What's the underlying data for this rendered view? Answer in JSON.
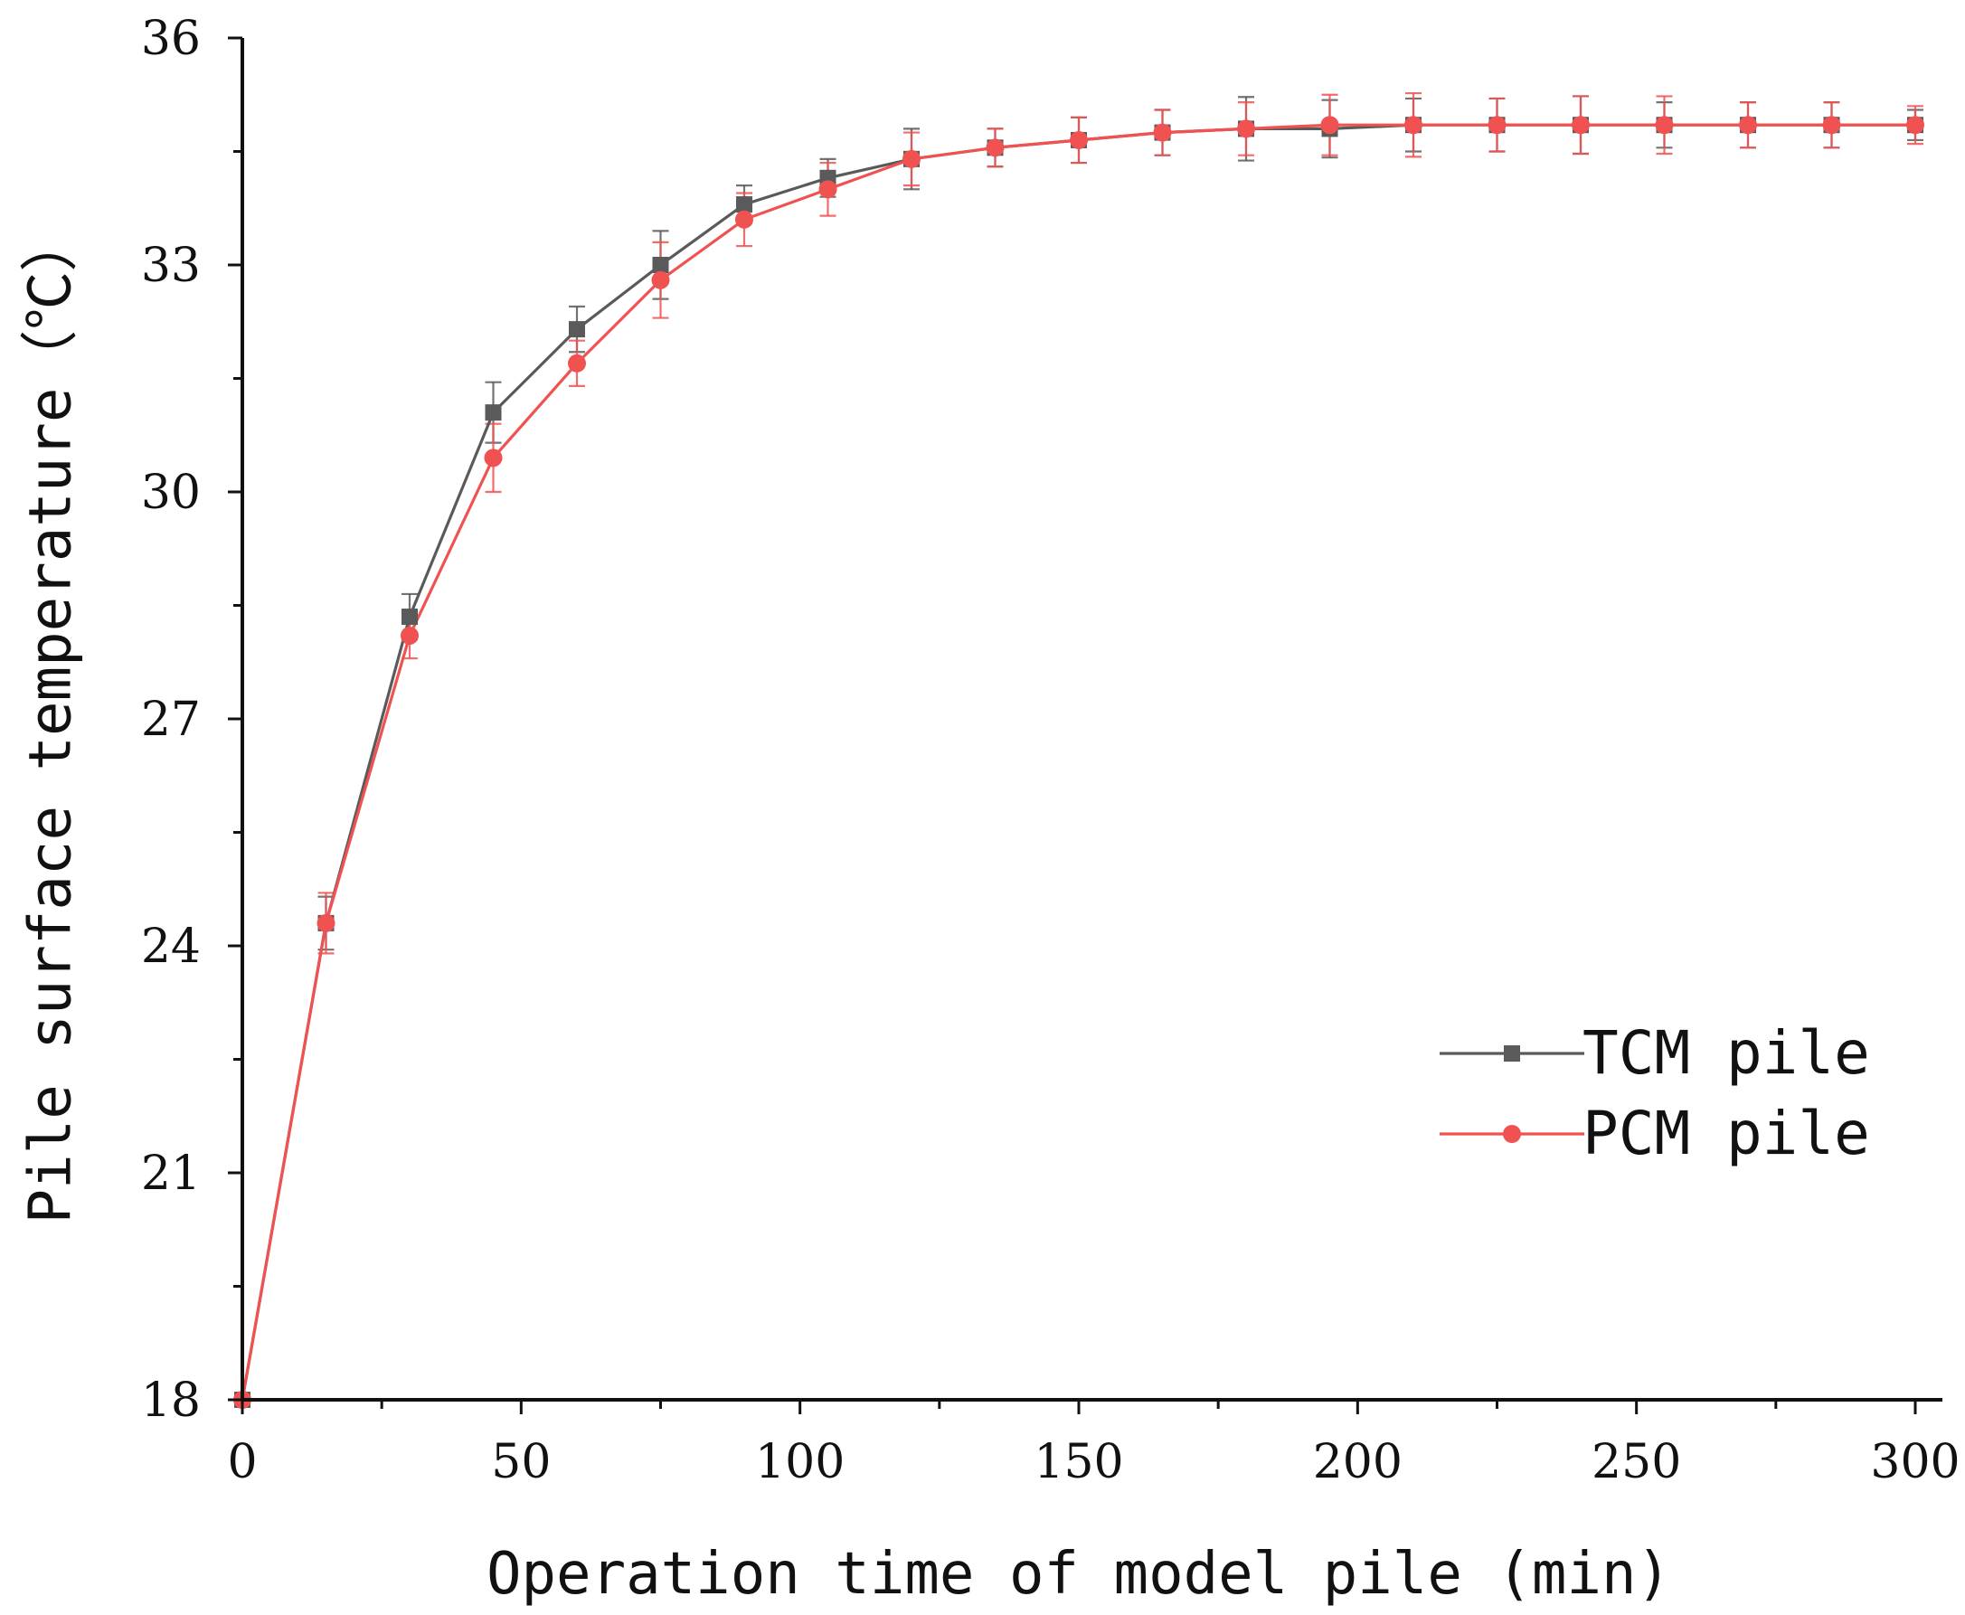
{
  "chart_data": {
    "type": "line",
    "title": "",
    "xlabel": "Operation time of model pile (min)",
    "ylabel": "Pile surface temperature（℃）",
    "xlim": [
      0,
      300
    ],
    "ylim": [
      18,
      36
    ],
    "xticks": [
      0,
      50,
      100,
      150,
      200,
      250,
      300
    ],
    "yticks": [
      18,
      21,
      24,
      27,
      30,
      33,
      36
    ],
    "x": [
      0,
      15,
      30,
      45,
      60,
      75,
      90,
      105,
      120,
      135,
      150,
      165,
      180,
      195,
      210,
      225,
      240,
      255,
      270,
      285,
      300
    ],
    "grid": false,
    "legend_position": "right-center",
    "series": [
      {
        "name": "TCM pile",
        "color": "#5a5a5a",
        "marker": "square",
        "values": [
          18.0,
          24.3,
          28.35,
          31.05,
          32.15,
          33.0,
          33.8,
          34.15,
          34.4,
          34.55,
          34.65,
          34.75,
          34.8,
          34.8,
          34.85,
          34.85,
          34.85,
          34.85,
          34.85,
          34.85,
          34.85
        ],
        "errors": [
          0.0,
          0.35,
          0.3,
          0.4,
          0.3,
          0.45,
          0.25,
          0.25,
          0.4,
          0.25,
          0.3,
          0.3,
          0.42,
          0.38,
          0.35,
          0.35,
          0.38,
          0.3,
          0.3,
          0.3,
          0.2
        ]
      },
      {
        "name": "PCM pile",
        "color": "#f05252",
        "marker": "circle",
        "values": [
          18.0,
          24.3,
          28.1,
          30.45,
          31.7,
          32.8,
          33.6,
          34.0,
          34.4,
          34.55,
          34.65,
          34.75,
          34.8,
          34.85,
          34.85,
          34.85,
          34.85,
          34.85,
          34.85,
          34.85,
          34.85
        ],
        "errors": [
          0.0,
          0.4,
          0.3,
          0.45,
          0.3,
          0.5,
          0.35,
          0.35,
          0.35,
          0.25,
          0.3,
          0.3,
          0.35,
          0.4,
          0.42,
          0.35,
          0.38,
          0.38,
          0.3,
          0.3,
          0.25
        ]
      }
    ]
  }
}
